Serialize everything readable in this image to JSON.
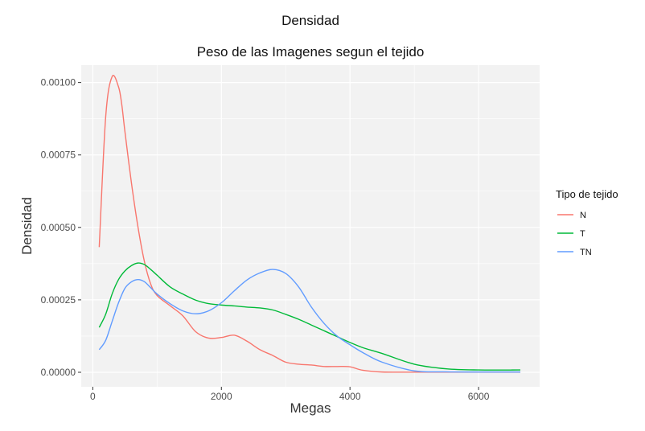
{
  "chart_data": {
    "type": "line",
    "suptitle": "Densidad",
    "title": "Peso de las Imagenes segun el tejido",
    "xlabel": "Megas",
    "ylabel": "Densidad",
    "xlim": [
      -180,
      6950
    ],
    "ylim": [
      -5e-05,
      0.00106
    ],
    "x_ticks": [
      0,
      2000,
      4000,
      6000
    ],
    "x_tick_labels": [
      "0",
      "2000",
      "4000",
      "6000"
    ],
    "x_minor_ticks": [
      1000,
      3000,
      5000
    ],
    "y_ticks": [
      0,
      0.00025,
      0.0005,
      0.00075,
      0.001
    ],
    "y_tick_labels": [
      "0.00000",
      "0.00025",
      "0.00050",
      "0.00075",
      "0.00100"
    ],
    "y_minor_ticks": [
      0.000125,
      0.000375,
      0.000625,
      0.000875
    ],
    "grid": true,
    "legend": {
      "title": "Tipo de tejido",
      "position": "right"
    },
    "colors": {
      "panel": "#f2f2f2",
      "grid": "#ffffff",
      "N": "#F8766D",
      "T": "#00BA38",
      "TN": "#619CFF"
    },
    "series": [
      {
        "name": "N",
        "color": "#F8766D",
        "x": [
          100,
          200,
          300,
          400,
          450,
          500,
          600,
          700,
          800,
          900,
          1000,
          1200,
          1400,
          1600,
          1800,
          2000,
          2200,
          2400,
          2600,
          2800,
          3000,
          3200,
          3400,
          3600,
          3800,
          4000,
          4200,
          4500,
          5000,
          5500,
          6000,
          6650
        ],
        "y": [
          0.000432,
          0.00088,
          0.00102,
          0.000985,
          0.000925,
          0.00083,
          0.000655,
          0.000505,
          0.000385,
          0.000305,
          0.000265,
          0.00023,
          0.000195,
          0.00014,
          0.000118,
          0.00012,
          0.000128,
          0.000107,
          7.8e-05,
          5.8e-05,
          3.5e-05,
          2.8e-05,
          2.5e-05,
          2e-05,
          2e-05,
          1.9e-05,
          7e-06,
          1e-06,
          5e-07,
          5e-07,
          5e-07,
          5e-07
        ]
      },
      {
        "name": "T",
        "color": "#00BA38",
        "x": [
          100,
          200,
          300,
          400,
          500,
          600,
          700,
          800,
          900,
          1000,
          1200,
          1400,
          1600,
          1800,
          2000,
          2200,
          2400,
          2600,
          2800,
          3000,
          3200,
          3400,
          3600,
          3800,
          4000,
          4200,
          4500,
          5000,
          5500,
          6000,
          6650
        ],
        "y": [
          0.000155,
          0.0002,
          0.00027,
          0.00032,
          0.00035,
          0.000368,
          0.000377,
          0.000372,
          0.000355,
          0.000335,
          0.000295,
          0.00027,
          0.000249,
          0.000237,
          0.000232,
          0.000229,
          0.000225,
          0.000222,
          0.000215,
          0.0002,
          0.000183,
          0.000163,
          0.000143,
          0.000123,
          0.000103,
          8.5e-05,
          6.5e-05,
          2.8e-05,
          1.2e-05,
          8e-06,
          8e-06
        ]
      },
      {
        "name": "TN",
        "color": "#619CFF",
        "x": [
          100,
          200,
          300,
          400,
          500,
          600,
          700,
          800,
          900,
          1000,
          1200,
          1400,
          1600,
          1800,
          2000,
          2200,
          2400,
          2600,
          2800,
          3000,
          3200,
          3400,
          3600,
          3800,
          4000,
          4200,
          4500,
          5000,
          5500,
          6000,
          6650
        ],
        "y": [
          7.8e-05,
          0.00011,
          0.000175,
          0.00024,
          0.00029,
          0.000312,
          0.00032,
          0.000313,
          0.000292,
          0.00027,
          0.000237,
          0.000212,
          0.000202,
          0.000212,
          0.00024,
          0.000281,
          0.000319,
          0.000343,
          0.000355,
          0.000341,
          0.000295,
          0.000225,
          0.000168,
          0.000125,
          9.5e-05,
          6.8e-05,
          3.5e-05,
          5e-06,
          1.5e-06,
          1e-06,
          1e-06
        ]
      }
    ]
  }
}
